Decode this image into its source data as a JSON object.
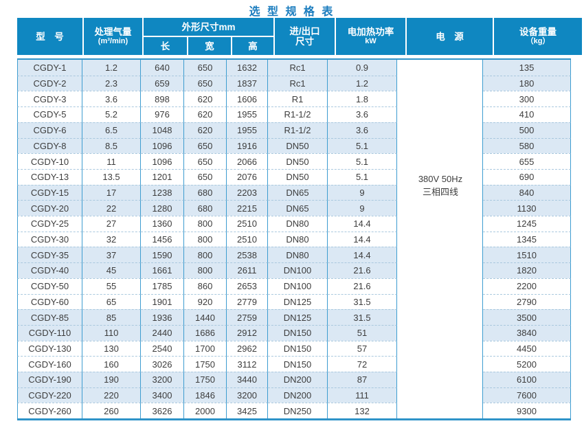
{
  "title": "选 型 规 格 表",
  "colors": {
    "header_bg": "#0f87c1",
    "header_text": "#ffffff",
    "row_alt": "#dbe8f4",
    "border": "#3c9cd0",
    "dash": "#a9c8de",
    "frame": "#2e93c8",
    "title": "#1a7cbe",
    "text": "#3c3c3c"
  },
  "header": {
    "model": "型　号",
    "flow": [
      "处理气量",
      "(m³/min)"
    ],
    "dims_group": "外形尺寸mm",
    "dims": [
      "长",
      "宽",
      "高"
    ],
    "port": [
      "进/出口",
      "尺寸"
    ],
    "heat_power": [
      "电加热功率",
      "kW"
    ],
    "power_supply": "电　源",
    "weight": [
      "设备重量",
      "（kg）"
    ]
  },
  "power_supply_value": [
    "380V 50Hz",
    "三相四线"
  ],
  "rows": [
    {
      "model": "CGDY-1",
      "flow": "1.2",
      "len": "640",
      "wid": "650",
      "hgt": "1632",
      "port": "Rc1",
      "kw": "0.9",
      "kg": "135",
      "shade": true
    },
    {
      "model": "CGDY-2",
      "flow": "2.3",
      "len": "659",
      "wid": "650",
      "hgt": "1837",
      "port": "Rc1",
      "kw": "1.2",
      "kg": "180",
      "shade": true
    },
    {
      "model": "CGDY-3",
      "flow": "3.6",
      "len": "898",
      "wid": "620",
      "hgt": "1606",
      "port": "R1",
      "kw": "1.8",
      "kg": "300",
      "shade": false
    },
    {
      "model": "CGDY-5",
      "flow": "5.2",
      "len": "976",
      "wid": "620",
      "hgt": "1955",
      "port": "R1-1/2",
      "kw": "3.6",
      "kg": "410",
      "shade": false
    },
    {
      "model": "CGDY-6",
      "flow": "6.5",
      "len": "1048",
      "wid": "620",
      "hgt": "1955",
      "port": "R1-1/2",
      "kw": "3.6",
      "kg": "500",
      "shade": true
    },
    {
      "model": "CGDY-8",
      "flow": "8.5",
      "len": "1096",
      "wid": "650",
      "hgt": "1916",
      "port": "DN50",
      "kw": "5.1",
      "kg": "580",
      "shade": true
    },
    {
      "model": "CGDY-10",
      "flow": "11",
      "len": "1096",
      "wid": "650",
      "hgt": "2066",
      "port": "DN50",
      "kw": "5.1",
      "kg": "655",
      "shade": false
    },
    {
      "model": "CGDY-13",
      "flow": "13.5",
      "len": "1201",
      "wid": "650",
      "hgt": "2076",
      "port": "DN50",
      "kw": "5.1",
      "kg": "690",
      "shade": false
    },
    {
      "model": "CGDY-15",
      "flow": "17",
      "len": "1238",
      "wid": "680",
      "hgt": "2203",
      "port": "DN65",
      "kw": "9",
      "kg": "840",
      "shade": true
    },
    {
      "model": "CGDY-20",
      "flow": "22",
      "len": "1280",
      "wid": "680",
      "hgt": "2215",
      "port": "DN65",
      "kw": "9",
      "kg": "1130",
      "shade": true
    },
    {
      "model": "CGDY-25",
      "flow": "27",
      "len": "1360",
      "wid": "800",
      "hgt": "2510",
      "port": "DN80",
      "kw": "14.4",
      "kg": "1245",
      "shade": false
    },
    {
      "model": "CGDY-30",
      "flow": "32",
      "len": "1456",
      "wid": "800",
      "hgt": "2510",
      "port": "DN80",
      "kw": "14.4",
      "kg": "1345",
      "shade": false
    },
    {
      "model": "CGDY-35",
      "flow": "37",
      "len": "1590",
      "wid": "800",
      "hgt": "2538",
      "port": "DN80",
      "kw": "14.4",
      "kg": "1510",
      "shade": true
    },
    {
      "model": "CGDY-40",
      "flow": "45",
      "len": "1661",
      "wid": "800",
      "hgt": "2611",
      "port": "DN100",
      "kw": "21.6",
      "kg": "1820",
      "shade": true
    },
    {
      "model": "CGDY-50",
      "flow": "55",
      "len": "1785",
      "wid": "860",
      "hgt": "2653",
      "port": "DN100",
      "kw": "21.6",
      "kg": "2200",
      "shade": false
    },
    {
      "model": "CGDY-60",
      "flow": "65",
      "len": "1901",
      "wid": "920",
      "hgt": "2779",
      "port": "DN125",
      "kw": "31.5",
      "kg": "2790",
      "shade": false
    },
    {
      "model": "CGDY-85",
      "flow": "85",
      "len": "1936",
      "wid": "1440",
      "hgt": "2759",
      "port": "DN125",
      "kw": "31.5",
      "kg": "3500",
      "shade": true
    },
    {
      "model": "CGDY-110",
      "flow": "110",
      "len": "2440",
      "wid": "1686",
      "hgt": "2912",
      "port": "DN150",
      "kw": "51",
      "kg": "3840",
      "shade": true
    },
    {
      "model": "CGDY-130",
      "flow": "130",
      "len": "2540",
      "wid": "1700",
      "hgt": "2962",
      "port": "DN150",
      "kw": "57",
      "kg": "4450",
      "shade": false
    },
    {
      "model": "CGDY-160",
      "flow": "160",
      "len": "3026",
      "wid": "1750",
      "hgt": "3112",
      "port": "DN150",
      "kw": "72",
      "kg": "5200",
      "shade": false
    },
    {
      "model": "CGDY-190",
      "flow": "190",
      "len": "3200",
      "wid": "1750",
      "hgt": "3440",
      "port": "DN200",
      "kw": "87",
      "kg": "6100",
      "shade": true
    },
    {
      "model": "CGDY-220",
      "flow": "220",
      "len": "3400",
      "wid": "1846",
      "hgt": "3200",
      "port": "DN200",
      "kw": "111",
      "kg": "7600",
      "shade": true
    },
    {
      "model": "CGDY-260",
      "flow": "260",
      "len": "3626",
      "wid": "2000",
      "hgt": "3425",
      "port": "DN250",
      "kw": "132",
      "kg": "9300",
      "shade": false
    }
  ]
}
